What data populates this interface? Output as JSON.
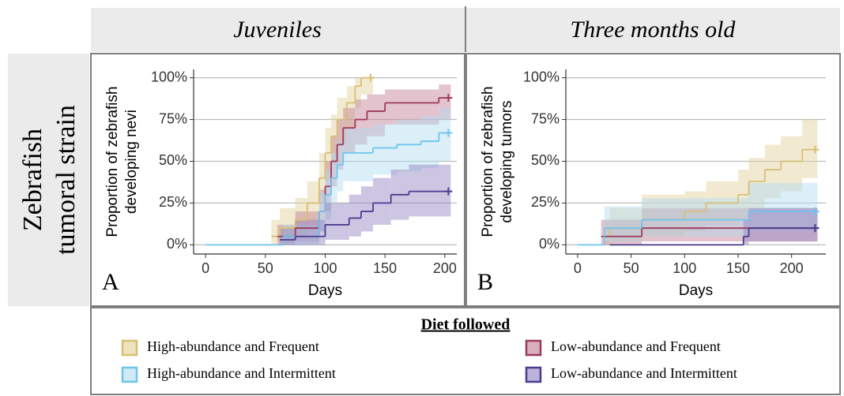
{
  "strips": {
    "columns": [
      "Juveniles",
      "Three months old"
    ],
    "row": [
      "Zebrafish",
      "tumoral strain"
    ]
  },
  "chart_data": [
    {
      "type": "step",
      "panel_label": "A",
      "xlabel": "Days",
      "ylabel": [
        "Proportion of zebrafish",
        "developing nevi"
      ],
      "xlim": [
        -10,
        210
      ],
      "ylim": [
        -5.5,
        105
      ],
      "xticks": [
        0,
        50,
        100,
        150,
        200
      ],
      "yticks": [
        {
          "value": 0,
          "label": "0%"
        },
        {
          "value": 25,
          "label": "25%"
        },
        {
          "value": 50,
          "label": "50%"
        },
        {
          "value": 75,
          "label": "75%"
        },
        {
          "value": 100,
          "label": "100%"
        }
      ],
      "grid": true,
      "series": [
        {
          "name": "High-abundance and Frequent",
          "color": "#d6bf74",
          "band_color": "#e3d196",
          "x": [
            55,
            62,
            75,
            85,
            95,
            100,
            105,
            110,
            118,
            125,
            130,
            138
          ],
          "values": [
            5,
            10,
            15,
            25,
            40,
            55,
            65,
            75,
            85,
            95,
            100,
            100
          ],
          "lower": [
            0,
            2,
            5,
            12,
            25,
            38,
            48,
            60,
            70,
            82,
            90,
            90
          ],
          "upper": [
            15,
            22,
            28,
            38,
            55,
            70,
            78,
            88,
            95,
            100,
            100,
            100
          ]
        },
        {
          "name": "Low-abundance and Frequent",
          "color": "#9c3a5c",
          "band_color": "#c07c93",
          "x": [
            60,
            75,
            95,
            100,
            105,
            110,
            115,
            125,
            135,
            150,
            195,
            203
          ],
          "values": [
            5,
            10,
            20,
            35,
            50,
            60,
            70,
            75,
            80,
            85,
            88,
            88
          ],
          "lower": [
            0,
            2,
            8,
            20,
            35,
            45,
            55,
            60,
            65,
            72,
            75,
            75
          ],
          "upper": [
            12,
            20,
            33,
            50,
            65,
            75,
            82,
            87,
            90,
            93,
            96,
            96
          ]
        },
        {
          "name": "High-abundance and Intermittent",
          "color": "#6fc4ec",
          "band_color": "#b0dcf2",
          "x": [
            0,
            65,
            95,
            100,
            105,
            110,
            115,
            140,
            160,
            180,
            195,
            203
          ],
          "values": [
            0,
            5,
            20,
            30,
            40,
            48,
            55,
            58,
            60,
            62,
            67,
            67
          ],
          "lower": [
            0,
            0,
            8,
            15,
            25,
            32,
            38,
            42,
            44,
            46,
            50,
            50
          ],
          "upper": [
            0,
            12,
            32,
            45,
            55,
            62,
            70,
            72,
            75,
            77,
            82,
            82
          ]
        },
        {
          "name": "Low-abundance and Intermittent",
          "color": "#4a3b8e",
          "band_color": "#8e81c0",
          "x": [
            62,
            75,
            100,
            120,
            130,
            140,
            155,
            170,
            203
          ],
          "values": [
            3,
            5,
            12,
            16,
            20,
            25,
            30,
            32,
            32
          ],
          "lower": [
            0,
            0,
            3,
            5,
            8,
            12,
            15,
            17,
            17
          ],
          "upper": [
            10,
            15,
            25,
            30,
            35,
            40,
            45,
            48,
            48
          ]
        }
      ]
    },
    {
      "type": "step",
      "panel_label": "B",
      "xlabel": "Days",
      "ylabel": [
        "Proportion of zebrafish",
        "developing tumors"
      ],
      "xlim": [
        -11,
        232
      ],
      "ylim": [
        -5.5,
        105
      ],
      "xticks": [
        0,
        50,
        100,
        150,
        200
      ],
      "yticks": [
        {
          "value": 0,
          "label": "0%"
        },
        {
          "value": 25,
          "label": "25%"
        },
        {
          "value": 50,
          "label": "50%"
        },
        {
          "value": 75,
          "label": "75%"
        },
        {
          "value": 100,
          "label": "100%"
        }
      ],
      "grid": true,
      "series": [
        {
          "name": "High-abundance and Frequent",
          "color": "#d6bf74",
          "band_color": "#e3d196",
          "x": [
            25,
            30,
            60,
            100,
            120,
            150,
            160,
            175,
            190,
            210,
            222
          ],
          "values": [
            5,
            10,
            15,
            20,
            25,
            30,
            38,
            45,
            50,
            57,
            57
          ],
          "lower": [
            0,
            2,
            5,
            8,
            12,
            15,
            22,
            28,
            32,
            40,
            40
          ],
          "upper": [
            15,
            22,
            30,
            32,
            38,
            45,
            52,
            60,
            65,
            75,
            75
          ]
        },
        {
          "name": "Low-abundance and Frequent",
          "color": "#9c3a5c",
          "band_color": "#c07c93",
          "x": [
            22,
            60,
            222
          ],
          "values": [
            5,
            10,
            10
          ],
          "lower": [
            0,
            2,
            2
          ],
          "upper": [
            15,
            22,
            22
          ]
        },
        {
          "name": "High-abundance and Intermittent",
          "color": "#6fc4ec",
          "band_color": "#b0dcf2",
          "x": [
            0,
            25,
            60,
            100,
            160,
            222
          ],
          "values": [
            0,
            10,
            15,
            15,
            20,
            20
          ],
          "lower": [
            0,
            2,
            5,
            5,
            8,
            8
          ],
          "upper": [
            0,
            23,
            28,
            28,
            37,
            37
          ]
        },
        {
          "name": "Low-abundance and Intermittent",
          "color": "#4a3b8e",
          "band_color": "#8e81c0",
          "x": [
            30,
            155,
            160,
            222
          ],
          "values": [
            0,
            5,
            10,
            10
          ],
          "lower": [
            0,
            0,
            2,
            2
          ],
          "upper": [
            0,
            15,
            22,
            22
          ]
        }
      ]
    }
  ],
  "legend": {
    "title": "Diet followed"
  }
}
